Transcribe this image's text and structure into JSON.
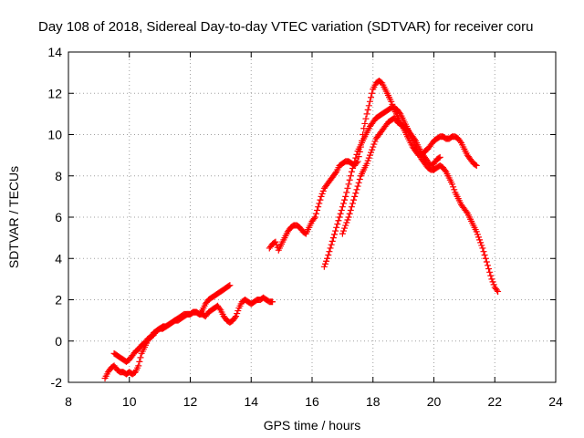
{
  "chart_data": {
    "type": "scatter",
    "title": "Day 108 of 2018, Sidereal Day-to-day VTEC variation (SDTVAR) for receiver coru",
    "xlabel": "GPS time / hours",
    "ylabel": "SDTVAR / TECUs",
    "xlim": [
      8,
      24
    ],
    "ylim": [
      -2,
      14
    ],
    "xticks": [
      "8",
      "10",
      "12",
      "14",
      "16",
      "18",
      "20",
      "22",
      "24"
    ],
    "yticks": [
      "-2",
      "0",
      "2",
      "4",
      "6",
      "8",
      "10",
      "12",
      "14"
    ],
    "grid": true,
    "marker_color": "#ff0000",
    "marker": "plus-icon",
    "series": [
      {
        "x": [
          9.2,
          9.3,
          9.4,
          9.5,
          9.6,
          9.7,
          9.8,
          9.9,
          10.0,
          10.1,
          10.2,
          10.3,
          10.4,
          10.5,
          10.6,
          10.7,
          10.8,
          10.9,
          11.0,
          11.1,
          11.2,
          11.3,
          11.4,
          11.5,
          11.6,
          11.7,
          11.8,
          11.9,
          12.0,
          12.1,
          12.2,
          12.3,
          12.4,
          12.5,
          12.6,
          12.7,
          12.8,
          12.9,
          13.0,
          13.1,
          13.2,
          13.3
        ],
        "y": [
          -1.8,
          -1.5,
          -1.3,
          -1.2,
          -1.4,
          -1.5,
          -1.5,
          -1.6,
          -1.5,
          -1.6,
          -1.5,
          -1.2,
          -0.6,
          -0.3,
          0.0,
          0.2,
          0.3,
          0.5,
          0.6,
          0.6,
          0.7,
          0.8,
          0.9,
          1.0,
          1.0,
          1.1,
          1.2,
          1.3,
          1.3,
          1.4,
          1.4,
          1.3,
          1.5,
          1.8,
          2.0,
          2.1,
          2.2,
          2.3,
          2.4,
          2.5,
          2.6,
          2.7
        ]
      },
      {
        "x": [
          9.5,
          9.6,
          9.7,
          9.8,
          9.9,
          10.0,
          10.1,
          10.2,
          10.3,
          10.4,
          10.5,
          10.6,
          10.7,
          10.8,
          10.9,
          11.0,
          11.1,
          11.2,
          11.3,
          11.4,
          11.5,
          11.6,
          11.7,
          11.8,
          11.9,
          12.0,
          12.1,
          12.2,
          12.3,
          12.4,
          12.5,
          12.6,
          12.7,
          12.8,
          12.9,
          13.0,
          13.1,
          13.2,
          13.3,
          13.4,
          13.5,
          13.6,
          13.7,
          13.8,
          13.9,
          14.0,
          14.1,
          14.2,
          14.3,
          14.4,
          14.5,
          14.6,
          14.7
        ],
        "y": [
          -0.6,
          -0.7,
          -0.8,
          -0.9,
          -1.0,
          -0.9,
          -0.7,
          -0.5,
          -0.4,
          -0.2,
          -0.1,
          0.1,
          0.2,
          0.4,
          0.5,
          0.6,
          0.7,
          0.7,
          0.8,
          0.9,
          1.0,
          1.1,
          1.2,
          1.3,
          1.3,
          1.3,
          1.4,
          1.4,
          1.3,
          1.3,
          1.2,
          1.4,
          1.5,
          1.6,
          1.7,
          1.5,
          1.2,
          1.0,
          0.9,
          1.0,
          1.2,
          1.6,
          1.9,
          2.0,
          1.9,
          1.8,
          1.9,
          2.0,
          2.0,
          2.1,
          2.0,
          1.9,
          1.9
        ]
      },
      {
        "x": [
          14.6,
          14.7,
          14.8,
          14.9,
          15.0,
          15.1,
          15.2,
          15.3,
          15.4,
          15.5,
          15.6,
          15.7,
          15.8,
          15.9,
          16.0,
          16.1,
          16.2,
          16.3,
          16.4,
          16.5,
          16.6,
          16.7,
          16.8,
          16.9,
          17.0,
          17.1,
          17.2,
          17.3,
          17.4,
          17.5,
          17.6,
          17.7,
          17.8,
          17.9,
          18.0,
          18.1,
          18.2,
          18.3,
          18.4,
          18.5,
          18.6,
          18.7,
          18.8,
          18.9,
          19.0,
          19.1,
          19.2,
          19.3,
          19.4,
          19.5,
          19.6,
          19.7,
          19.8,
          19.9,
          20.0,
          20.1,
          20.2,
          20.3,
          20.4,
          20.5,
          20.6,
          20.7,
          20.8,
          20.9,
          21.0,
          21.1,
          21.2,
          21.3,
          21.4
        ],
        "y": [
          4.5,
          4.7,
          4.8,
          4.4,
          4.7,
          5.0,
          5.3,
          5.5,
          5.6,
          5.6,
          5.5,
          5.3,
          5.2,
          5.5,
          5.8,
          6.0,
          6.5,
          7.0,
          7.4,
          7.6,
          7.8,
          8.0,
          8.2,
          8.5,
          8.6,
          8.7,
          8.7,
          8.6,
          8.5,
          8.7,
          9.4,
          10.3,
          11.0,
          11.6,
          12.2,
          12.5,
          12.6,
          12.5,
          12.2,
          11.9,
          11.6,
          11.2,
          10.9,
          10.6,
          10.3,
          10.0,
          9.7,
          9.4,
          9.2,
          9.0,
          9.0,
          9.2,
          9.3,
          9.5,
          9.7,
          9.8,
          9.9,
          9.9,
          9.8,
          9.8,
          9.9,
          9.9,
          9.8,
          9.6,
          9.3,
          9.0,
          8.8,
          8.6,
          8.5
        ]
      },
      {
        "x": [
          16.4,
          16.5,
          16.6,
          16.7,
          16.8,
          16.9,
          17.0,
          17.1,
          17.2,
          17.3,
          17.4,
          17.5,
          17.6,
          17.7,
          17.8,
          17.9,
          18.0,
          18.1,
          18.2,
          18.3,
          18.4,
          18.5,
          18.6,
          18.7,
          18.8,
          18.9,
          19.0,
          19.1,
          19.2,
          19.3,
          19.4,
          19.5,
          19.6,
          19.7,
          19.8,
          19.9,
          20.0,
          20.1,
          20.2,
          20.3,
          20.4,
          20.5,
          20.6,
          20.7,
          20.8,
          20.9,
          21.0,
          21.1,
          21.2,
          21.3,
          21.4,
          21.5,
          21.6,
          21.7,
          21.8,
          21.9,
          22.0,
          22.1
        ],
        "y": [
          3.6,
          4.0,
          4.5,
          5.0,
          5.5,
          6.0,
          6.5,
          7.0,
          7.6,
          8.2,
          8.7,
          9.2,
          9.5,
          9.8,
          10.1,
          10.4,
          10.6,
          10.8,
          10.9,
          11.0,
          11.1,
          11.2,
          11.3,
          11.3,
          11.2,
          11.0,
          10.7,
          10.4,
          10.1,
          9.7,
          9.4,
          9.1,
          8.8,
          8.6,
          8.4,
          8.3,
          8.3,
          8.4,
          8.5,
          8.4,
          8.2,
          7.9,
          7.6,
          7.2,
          6.9,
          6.6,
          6.4,
          6.2,
          5.9,
          5.6,
          5.3,
          4.9,
          4.5,
          4.0,
          3.5,
          3.0,
          2.6,
          2.4
        ]
      },
      {
        "x": [
          17.0,
          17.1,
          17.2,
          17.3,
          17.4,
          17.5,
          17.6,
          17.7,
          17.8,
          17.9,
          18.0,
          18.1,
          18.2,
          18.3,
          18.4,
          18.5,
          18.6,
          18.7,
          18.8,
          18.9,
          19.0,
          19.1,
          19.2,
          19.3,
          19.4,
          19.5,
          19.6,
          19.7,
          19.8,
          19.9,
          20.0,
          20.1,
          20.2
        ],
        "y": [
          5.2,
          5.6,
          6.0,
          6.5,
          7.0,
          7.5,
          8.0,
          8.3,
          8.6,
          9.0,
          9.4,
          9.8,
          10.0,
          10.2,
          10.4,
          10.6,
          10.7,
          10.8,
          10.6,
          10.5,
          10.4,
          10.3,
          10.1,
          9.9,
          9.7,
          9.4,
          9.1,
          8.9,
          8.7,
          8.5,
          8.6,
          8.8,
          8.9
        ]
      }
    ]
  }
}
